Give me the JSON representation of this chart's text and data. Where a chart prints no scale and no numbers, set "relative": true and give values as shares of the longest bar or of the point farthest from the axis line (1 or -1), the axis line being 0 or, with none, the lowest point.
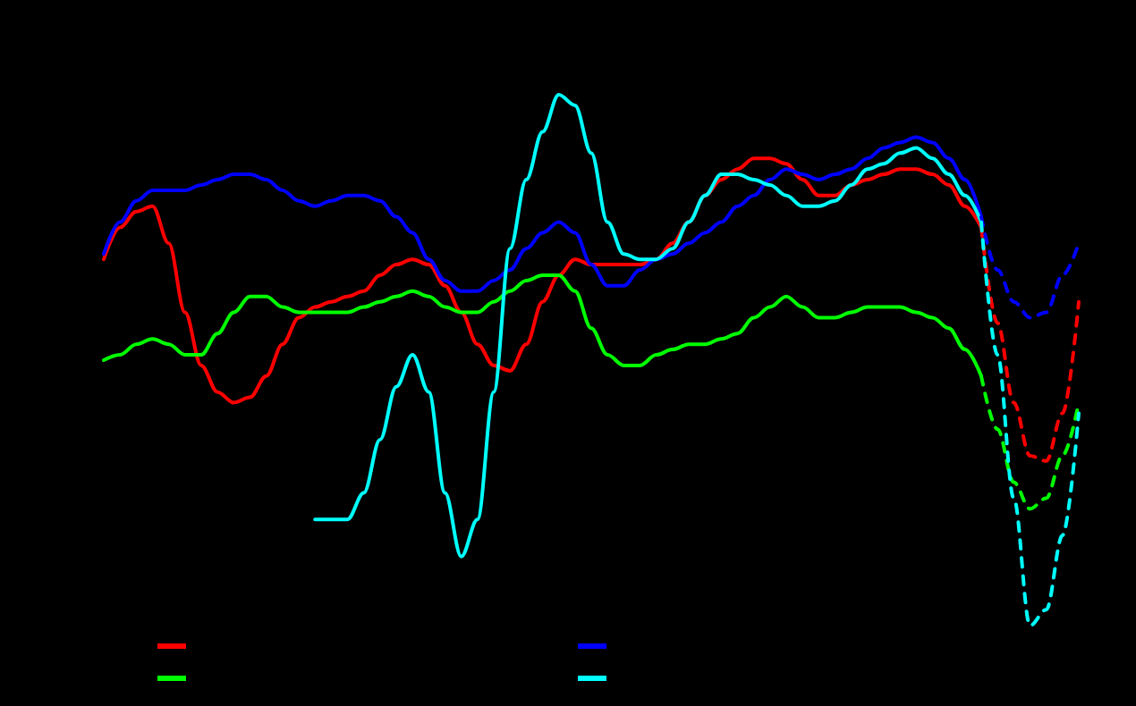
{
  "chart_data": {
    "type": "line",
    "relative": true,
    "grid": false,
    "categories": [
      null,
      null,
      null,
      null,
      null,
      null,
      null,
      null,
      null,
      null,
      null,
      null,
      null,
      null,
      null,
      null,
      null,
      null,
      null,
      null,
      null,
      null,
      null,
      null,
      null,
      null,
      null,
      null,
      null,
      null,
      null,
      null,
      null,
      null,
      null,
      null,
      null,
      null,
      null,
      null,
      null,
      null,
      null,
      null,
      null,
      null,
      null,
      null,
      null,
      null,
      null,
      null,
      null,
      null,
      null,
      null,
      null,
      null,
      null,
      null,
      null
    ],
    "series": [
      {
        "color": "#ff0000",
        "line_style": "solid",
        "values": [
          0.69,
          0.75,
          0.78,
          0.79,
          0.72,
          0.59,
          0.49,
          0.44,
          0.42,
          0.43,
          0.47,
          0.53,
          0.58,
          0.6,
          0.61,
          0.62,
          0.63,
          0.66,
          0.68,
          0.69,
          0.68,
          0.64,
          0.59,
          0.53,
          0.49,
          0.48,
          0.53,
          0.61,
          0.66,
          0.69,
          0.68,
          0.68,
          0.68,
          0.68,
          0.69,
          0.72,
          0.76,
          0.81,
          0.84,
          0.86,
          0.88,
          0.88,
          0.87,
          0.84,
          0.81,
          0.81,
          0.83,
          0.84,
          0.85,
          0.86,
          0.86,
          0.85,
          0.83,
          0.79,
          0.75,
          null,
          null,
          null,
          null,
          null,
          null
        ]
      },
      {
        "color": "#00ff00",
        "line_style": "solid",
        "values": [
          0.5,
          0.51,
          0.53,
          0.54,
          0.53,
          0.51,
          0.51,
          0.55,
          0.59,
          0.62,
          0.62,
          0.6,
          0.59,
          0.59,
          0.59,
          0.59,
          0.6,
          0.61,
          0.62,
          0.63,
          0.62,
          0.6,
          0.59,
          0.59,
          0.61,
          0.63,
          0.65,
          0.66,
          0.66,
          0.63,
          0.56,
          0.51,
          0.49,
          0.49,
          0.51,
          0.52,
          0.53,
          0.53,
          0.54,
          0.55,
          0.58,
          0.6,
          0.62,
          0.6,
          0.58,
          0.58,
          0.59,
          0.6,
          0.6,
          0.6,
          0.59,
          0.58,
          0.56,
          0.52,
          0.47,
          null,
          null,
          null,
          null,
          null,
          null
        ]
      },
      {
        "color": "#0000ff",
        "line_style": "solid",
        "values": [
          0.7,
          0.76,
          0.8,
          0.82,
          0.82,
          0.82,
          0.83,
          0.84,
          0.85,
          0.85,
          0.84,
          0.82,
          0.8,
          0.79,
          0.8,
          0.81,
          0.81,
          0.8,
          0.77,
          0.74,
          0.69,
          0.65,
          0.63,
          0.63,
          0.65,
          0.67,
          0.71,
          0.74,
          0.76,
          0.74,
          0.68,
          0.64,
          0.64,
          0.67,
          0.69,
          0.7,
          0.72,
          0.74,
          0.76,
          0.79,
          0.81,
          0.84,
          0.86,
          0.85,
          0.84,
          0.85,
          0.86,
          0.88,
          0.9,
          0.91,
          0.92,
          0.91,
          0.88,
          0.84,
          0.77,
          null,
          null,
          null,
          null,
          null,
          null
        ]
      },
      {
        "color": "#00ffff",
        "line_style": "solid",
        "values": [
          null,
          null,
          null,
          null,
          null,
          null,
          null,
          null,
          null,
          null,
          null,
          null,
          null,
          0.2,
          0.2,
          0.2,
          0.25,
          0.35,
          0.45,
          0.51,
          0.44,
          0.25,
          0.13,
          0.2,
          0.44,
          0.71,
          0.84,
          0.93,
          1.0,
          0.98,
          0.89,
          0.76,
          0.7,
          0.69,
          0.69,
          0.71,
          0.76,
          0.81,
          0.85,
          0.85,
          0.84,
          0.83,
          0.81,
          0.79,
          0.79,
          0.8,
          0.83,
          0.86,
          0.87,
          0.89,
          0.9,
          0.88,
          0.85,
          0.81,
          0.76,
          null,
          null,
          null,
          null,
          null,
          null
        ]
      },
      {
        "color": "#ff0000",
        "line_style": "dashed",
        "values": [
          null,
          null,
          null,
          null,
          null,
          null,
          null,
          null,
          null,
          null,
          null,
          null,
          null,
          null,
          null,
          null,
          null,
          null,
          null,
          null,
          null,
          null,
          null,
          null,
          null,
          null,
          null,
          null,
          null,
          null,
          null,
          null,
          null,
          null,
          null,
          null,
          null,
          null,
          null,
          null,
          null,
          null,
          null,
          null,
          null,
          null,
          null,
          null,
          null,
          null,
          null,
          null,
          null,
          null,
          0.75,
          0.57,
          0.42,
          0.32,
          0.31,
          0.4,
          0.61
        ]
      },
      {
        "color": "#00ff00",
        "line_style": "dashed",
        "values": [
          null,
          null,
          null,
          null,
          null,
          null,
          null,
          null,
          null,
          null,
          null,
          null,
          null,
          null,
          null,
          null,
          null,
          null,
          null,
          null,
          null,
          null,
          null,
          null,
          null,
          null,
          null,
          null,
          null,
          null,
          null,
          null,
          null,
          null,
          null,
          null,
          null,
          null,
          null,
          null,
          null,
          null,
          null,
          null,
          null,
          null,
          null,
          null,
          null,
          null,
          null,
          null,
          null,
          null,
          0.47,
          0.37,
          0.27,
          0.22,
          0.24,
          0.32,
          0.42
        ]
      },
      {
        "color": "#0000ff",
        "line_style": "dashed",
        "values": [
          null,
          null,
          null,
          null,
          null,
          null,
          null,
          null,
          null,
          null,
          null,
          null,
          null,
          null,
          null,
          null,
          null,
          null,
          null,
          null,
          null,
          null,
          null,
          null,
          null,
          null,
          null,
          null,
          null,
          null,
          null,
          null,
          null,
          null,
          null,
          null,
          null,
          null,
          null,
          null,
          null,
          null,
          null,
          null,
          null,
          null,
          null,
          null,
          null,
          null,
          null,
          null,
          null,
          null,
          0.77,
          0.67,
          0.61,
          0.58,
          0.59,
          0.66,
          0.72
        ]
      },
      {
        "color": "#00ffff",
        "line_style": "dashed",
        "values": [
          null,
          null,
          null,
          null,
          null,
          null,
          null,
          null,
          null,
          null,
          null,
          null,
          null,
          null,
          null,
          null,
          null,
          null,
          null,
          null,
          null,
          null,
          null,
          null,
          null,
          null,
          null,
          null,
          null,
          null,
          null,
          null,
          null,
          null,
          null,
          null,
          null,
          null,
          null,
          null,
          null,
          null,
          null,
          null,
          null,
          null,
          null,
          null,
          null,
          null,
          null,
          null,
          null,
          null,
          0.76,
          0.51,
          0.24,
          0.0,
          0.03,
          0.17,
          0.4
        ]
      }
    ]
  }
}
